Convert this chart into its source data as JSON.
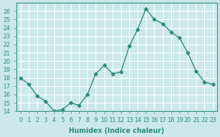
{
  "x": [
    0,
    1,
    2,
    3,
    4,
    5,
    6,
    7,
    8,
    9,
    10,
    11,
    12,
    13,
    14,
    15,
    16,
    17,
    18,
    19,
    20,
    21,
    22,
    23
  ],
  "y": [
    18.0,
    17.2,
    15.8,
    15.2,
    14.0,
    14.2,
    15.0,
    14.7,
    16.0,
    18.5,
    19.5,
    18.5,
    18.7,
    21.8,
    23.8,
    26.3,
    25.0,
    24.5,
    23.5,
    22.8,
    21.0,
    18.8,
    17.5,
    17.2
  ],
  "xlabel": "Humidex (Indice chaleur)",
  "ylabel": "",
  "ylim": [
    14,
    27
  ],
  "xlim": [
    -0.5,
    23.5
  ],
  "yticks": [
    14,
    15,
    16,
    17,
    18,
    19,
    20,
    21,
    22,
    23,
    24,
    25,
    26
  ],
  "xticks": [
    0,
    1,
    2,
    3,
    4,
    5,
    6,
    7,
    8,
    9,
    10,
    11,
    12,
    13,
    14,
    15,
    16,
    17,
    18,
    19,
    20,
    21,
    22,
    23
  ],
  "line_color": "#2e8b7a",
  "marker": "D",
  "marker_size": 2.5,
  "bg_color": "#cce8e8",
  "grid_color": "#ffffff",
  "title_fontsize": 7,
  "label_fontsize": 7,
  "tick_fontsize": 6
}
